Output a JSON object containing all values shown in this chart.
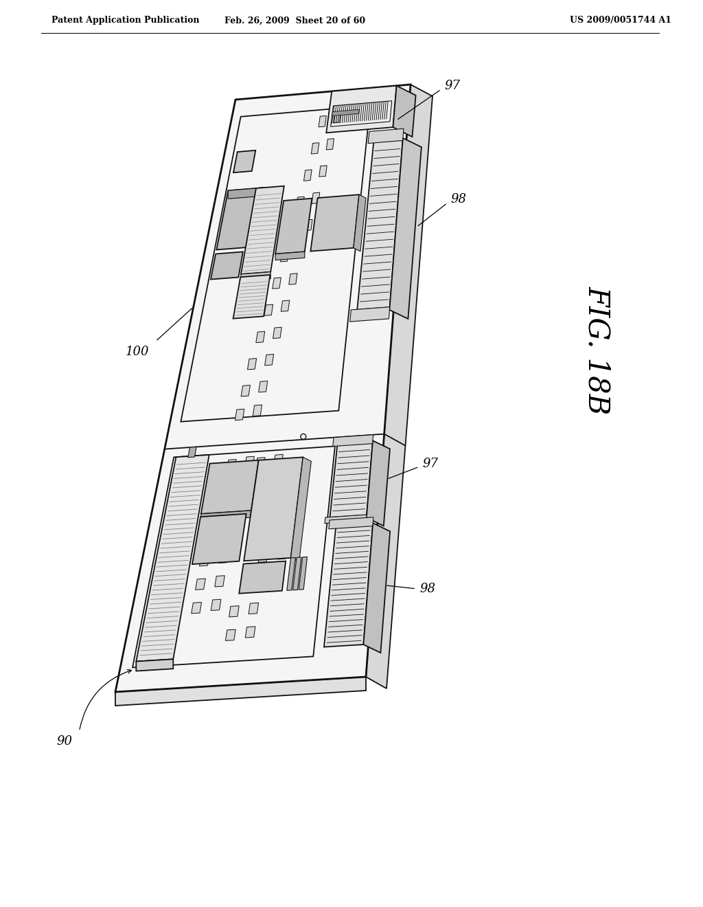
{
  "bg_color": "#ffffff",
  "header_left": "Patent Application Publication",
  "header_mid": "Feb. 26, 2009  Sheet 20 of 60",
  "header_right": "US 2009/0051744 A1",
  "fig_label": "FIG. 18B",
  "label_90": "90",
  "label_97a": "97",
  "label_97b": "97",
  "label_98a": "98",
  "label_98b": "98",
  "label_100": "100",
  "line_color": "#1a1a1a",
  "edge_color": "#111111",
  "fill_board": "#f5f5f5",
  "fill_side": "#d0d0d0",
  "fill_connector": "#c8c8c8",
  "fill_chip": "#b0b0b0",
  "fill_pins": "#444444"
}
